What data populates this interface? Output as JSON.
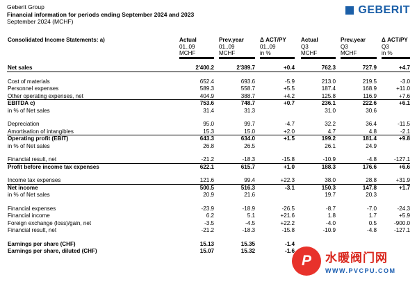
{
  "header": {
    "company": "Geberit Group",
    "title": "Financial information for periods ending September 2024 and 2023",
    "subtitle": "September 2024 (MCHF)"
  },
  "logo": {
    "text": "GEBERIT",
    "color": "#1b5fa8"
  },
  "table": {
    "section_title": "Consolidated Income Statements: a)",
    "columns": [
      {
        "title": "Actual",
        "period": "01..09",
        "unit": "MCHF"
      },
      {
        "title": "Prev.year",
        "period": "01..09",
        "unit": "MCHF"
      },
      {
        "title": "Δ ACT/PY",
        "period": "01..09",
        "unit": "in %"
      },
      {
        "title": "Actual",
        "period": "Q3",
        "unit": "MCHF"
      },
      {
        "title": "Prev.year",
        "period": "Q3",
        "unit": "MCHF"
      },
      {
        "title": "Δ ACT/PY",
        "period": "Q3",
        "unit": "in %"
      }
    ],
    "rows": [
      {
        "label": "Net sales",
        "values": [
          "2'400.2",
          "2'389.7",
          "+0.4",
          "762.3",
          "727.9",
          "+4.7"
        ],
        "bold": true,
        "under": true
      },
      {
        "gap": true
      },
      {
        "label": "Cost of materials",
        "values": [
          "652.4",
          "693.6",
          "-5.9",
          "213.0",
          "219.5",
          "-3.0"
        ]
      },
      {
        "label": "Personnel expenses",
        "values": [
          "589.3",
          "558.7",
          "+5.5",
          "187.4",
          "168.9",
          "+11.0"
        ]
      },
      {
        "label": "Other operating expenses, net",
        "values": [
          "404.9",
          "388.7",
          "+4.2",
          "125.8",
          "116.9",
          "+7.6"
        ],
        "under": true
      },
      {
        "label": "EBITDA c)",
        "values": [
          "753.6",
          "748.7",
          "+0.7",
          "236.1",
          "222.6",
          "+6.1"
        ],
        "bold": true
      },
      {
        "label": "in % of Net sales",
        "values": [
          "31.4",
          "31.3",
          "",
          "31.0",
          "30.6",
          ""
        ]
      },
      {
        "gap": true
      },
      {
        "label": "Depreciation",
        "values": [
          "95.0",
          "99.7",
          "-4.7",
          "32.2",
          "36.4",
          "-11.5"
        ]
      },
      {
        "label": "Amortisation of intangibles",
        "values": [
          "15.3",
          "15.0",
          "+2.0",
          "4.7",
          "4.8",
          "-2.1"
        ],
        "under": true
      },
      {
        "label": "Operating profit (EBIT)",
        "values": [
          "643.3",
          "634.0",
          "+1.5",
          "199.2",
          "181.4",
          "+9.8"
        ],
        "bold": true
      },
      {
        "label": "in % of Net sales",
        "values": [
          "26.8",
          "26.5",
          "",
          "26.1",
          "24.9",
          ""
        ]
      },
      {
        "gap": true
      },
      {
        "label": "Financial result, net",
        "values": [
          "-21.2",
          "-18.3",
          "-15.8",
          "-10.9",
          "-4.8",
          "-127.1"
        ],
        "under": true
      },
      {
        "label": "Profit before income tax expenses",
        "values": [
          "622.1",
          "615.7",
          "+1.0",
          "188.3",
          "176.6",
          "+6.6"
        ],
        "bold": true
      },
      {
        "gap": true
      },
      {
        "label": "Income tax expenses",
        "values": [
          "121.6",
          "99.4",
          "+22.3",
          "38.0",
          "28.8",
          "+31.9"
        ],
        "under": true
      },
      {
        "label": "Net income",
        "values": [
          "500.5",
          "516.3",
          "-3.1",
          "150.3",
          "147.8",
          "+1.7"
        ],
        "bold": true
      },
      {
        "label": "in % of Net sales",
        "values": [
          "20.9",
          "21.6",
          "",
          "19.7",
          "20.3",
          ""
        ]
      },
      {
        "gap": true
      },
      {
        "label": "Financial expenses",
        "values": [
          "-23.9",
          "-18.9",
          "-26.5",
          "-8.7",
          "-7.0",
          "-24.3"
        ]
      },
      {
        "label": "Financial income",
        "values": [
          "6.2",
          "5.1",
          "+21.6",
          "1.8",
          "1.7",
          "+5.9"
        ]
      },
      {
        "label": "Foreign exchange (loss)/gain, net",
        "values": [
          "-3.5",
          "-4.5",
          "+22.2",
          "-4.0",
          "0.5",
          "-900.0"
        ]
      },
      {
        "label": "Financial result, net",
        "values": [
          "-21.2",
          "-18.3",
          "-15.8",
          "-10.9",
          "-4.8",
          "-127.1"
        ]
      },
      {
        "gap": true
      },
      {
        "label": "Earnings per share (CHF)",
        "values": [
          "15.13",
          "15.35",
          "-1.4",
          "",
          "",
          ""
        ],
        "bold": true
      },
      {
        "label": "Earnings per share, diluted (CHF)",
        "values": [
          "15.07",
          "15.32",
          "-1.6",
          "",
          "",
          ""
        ],
        "bold": true
      }
    ]
  },
  "watermark": {
    "circle_text": "P",
    "name": "水暖阀门网",
    "url": "WWW.PVCPU.COM"
  }
}
